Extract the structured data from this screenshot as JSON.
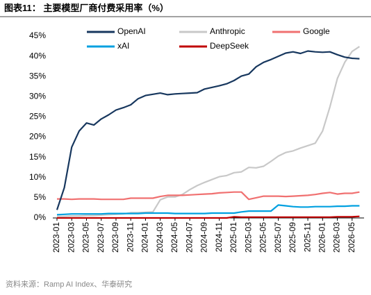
{
  "chart_data": {
    "type": "line",
    "title": "图表11：  主要模型厂商付费采用率（%）",
    "source": "资料来源：Ramp AI Index、华泰研究",
    "categories": [
      "2023-01",
      null,
      "2023-03",
      null,
      "2023-05",
      null,
      "2023-07",
      null,
      "2023-09",
      null,
      "2023-11",
      null,
      "2024-01",
      null,
      "2024-03",
      null,
      "2024-05",
      null,
      "2024-07",
      null,
      "2024-09",
      null,
      "2024-11",
      null,
      "2025-01",
      null,
      "2025-03",
      null,
      "2025-05",
      null,
      "2025-07",
      null,
      "2025-09",
      null,
      "2025-11",
      null,
      "2026-01",
      null,
      "2026-03",
      null,
      "2026-05",
      null
    ],
    "series": [
      {
        "name": "OpenAI",
        "color": "#17375e",
        "values": [
          2,
          7.5,
          17.5,
          21.5,
          23.5,
          23,
          24.5,
          25.5,
          26.7,
          27.3,
          28,
          29.5,
          30.3,
          30.6,
          30.9,
          30.5,
          30.7,
          30.8,
          30.9,
          31,
          31.9,
          32.3,
          32.7,
          33.2,
          34,
          35.1,
          35.6,
          37.4,
          38.5,
          39.2,
          40,
          40.8,
          41.1,
          40.7,
          41.3,
          41.1,
          41,
          41.1,
          40.4,
          39.8,
          39.5,
          39.4
        ]
      },
      {
        "name": "Anthropic",
        "color": "#c8c8c8",
        "values": [
          0.4,
          0.4,
          0.5,
          0.5,
          0.6,
          0.6,
          0.7,
          0.8,
          0.9,
          1.0,
          1.3,
          1.3,
          1.4,
          1.5,
          4.5,
          5.2,
          5.2,
          5.8,
          7.0,
          8.0,
          8.8,
          9.5,
          10.2,
          10.5,
          11.2,
          11.4,
          12.5,
          12.4,
          12.8,
          14.0,
          15.3,
          16.2,
          16.6,
          17.3,
          17.9,
          18.5,
          21.5,
          27.5,
          34.5,
          38.5,
          41.2,
          42.4
        ]
      },
      {
        "name": "Google",
        "color": "#f07070",
        "values": [
          4.7,
          4.7,
          4.6,
          4.7,
          4.7,
          4.7,
          4.6,
          4.6,
          4.6,
          4.6,
          4.9,
          4.9,
          4.9,
          4.9,
          5.3,
          5.6,
          5.6,
          5.6,
          5.7,
          5.8,
          5.9,
          6.0,
          6.2,
          6.3,
          6.4,
          6.4,
          4.6,
          5.0,
          5.4,
          5.4,
          5.4,
          5.3,
          5.4,
          5.5,
          5.6,
          5.8,
          6.1,
          6.3,
          5.9,
          6.1,
          6.1,
          6.4
        ]
      },
      {
        "name": "xAI",
        "color": "#00a0e0",
        "values": [
          0.8,
          0.9,
          1.0,
          1.0,
          1.0,
          1.0,
          1.0,
          1.1,
          1.1,
          1.1,
          1.1,
          1.1,
          1.2,
          1.2,
          1.2,
          1.2,
          1.1,
          1.1,
          1.1,
          1.1,
          1.1,
          1.2,
          1.2,
          1.2,
          1.2,
          1.5,
          1.7,
          1.7,
          1.7,
          1.7,
          3.2,
          3.0,
          2.8,
          2.7,
          2.7,
          2.8,
          2.8,
          2.8,
          2.9,
          2.9,
          3.0,
          3.0
        ]
      },
      {
        "name": "DeepSeek",
        "color": "#c00000",
        "values": [
          0,
          0,
          0,
          0,
          0,
          0,
          0,
          0,
          0,
          0,
          0,
          0,
          0,
          0,
          0,
          0,
          0,
          0,
          0,
          0,
          0,
          0,
          0,
          0,
          0.3,
          0.2,
          0.2,
          0.2,
          0.2,
          0.2,
          0.2,
          0.2,
          0.2,
          0.2,
          0.2,
          0.2,
          0.2,
          0.2,
          0.3,
          0.3,
          0.3,
          0.4
        ]
      }
    ],
    "ylim": [
      0,
      45
    ],
    "yticks": [
      {
        "value": 0,
        "label": "0%"
      },
      {
        "value": 5,
        "label": "5%"
      },
      {
        "value": 10,
        "label": "10%"
      },
      {
        "value": 15,
        "label": "15%"
      },
      {
        "value": 20,
        "label": "20%"
      },
      {
        "value": 25,
        "label": "25%"
      },
      {
        "value": 30,
        "label": "30%"
      },
      {
        "value": 35,
        "label": "35%"
      },
      {
        "value": 40,
        "label": "40%"
      },
      {
        "value": 45,
        "label": "45%"
      }
    ],
    "grid": false
  }
}
